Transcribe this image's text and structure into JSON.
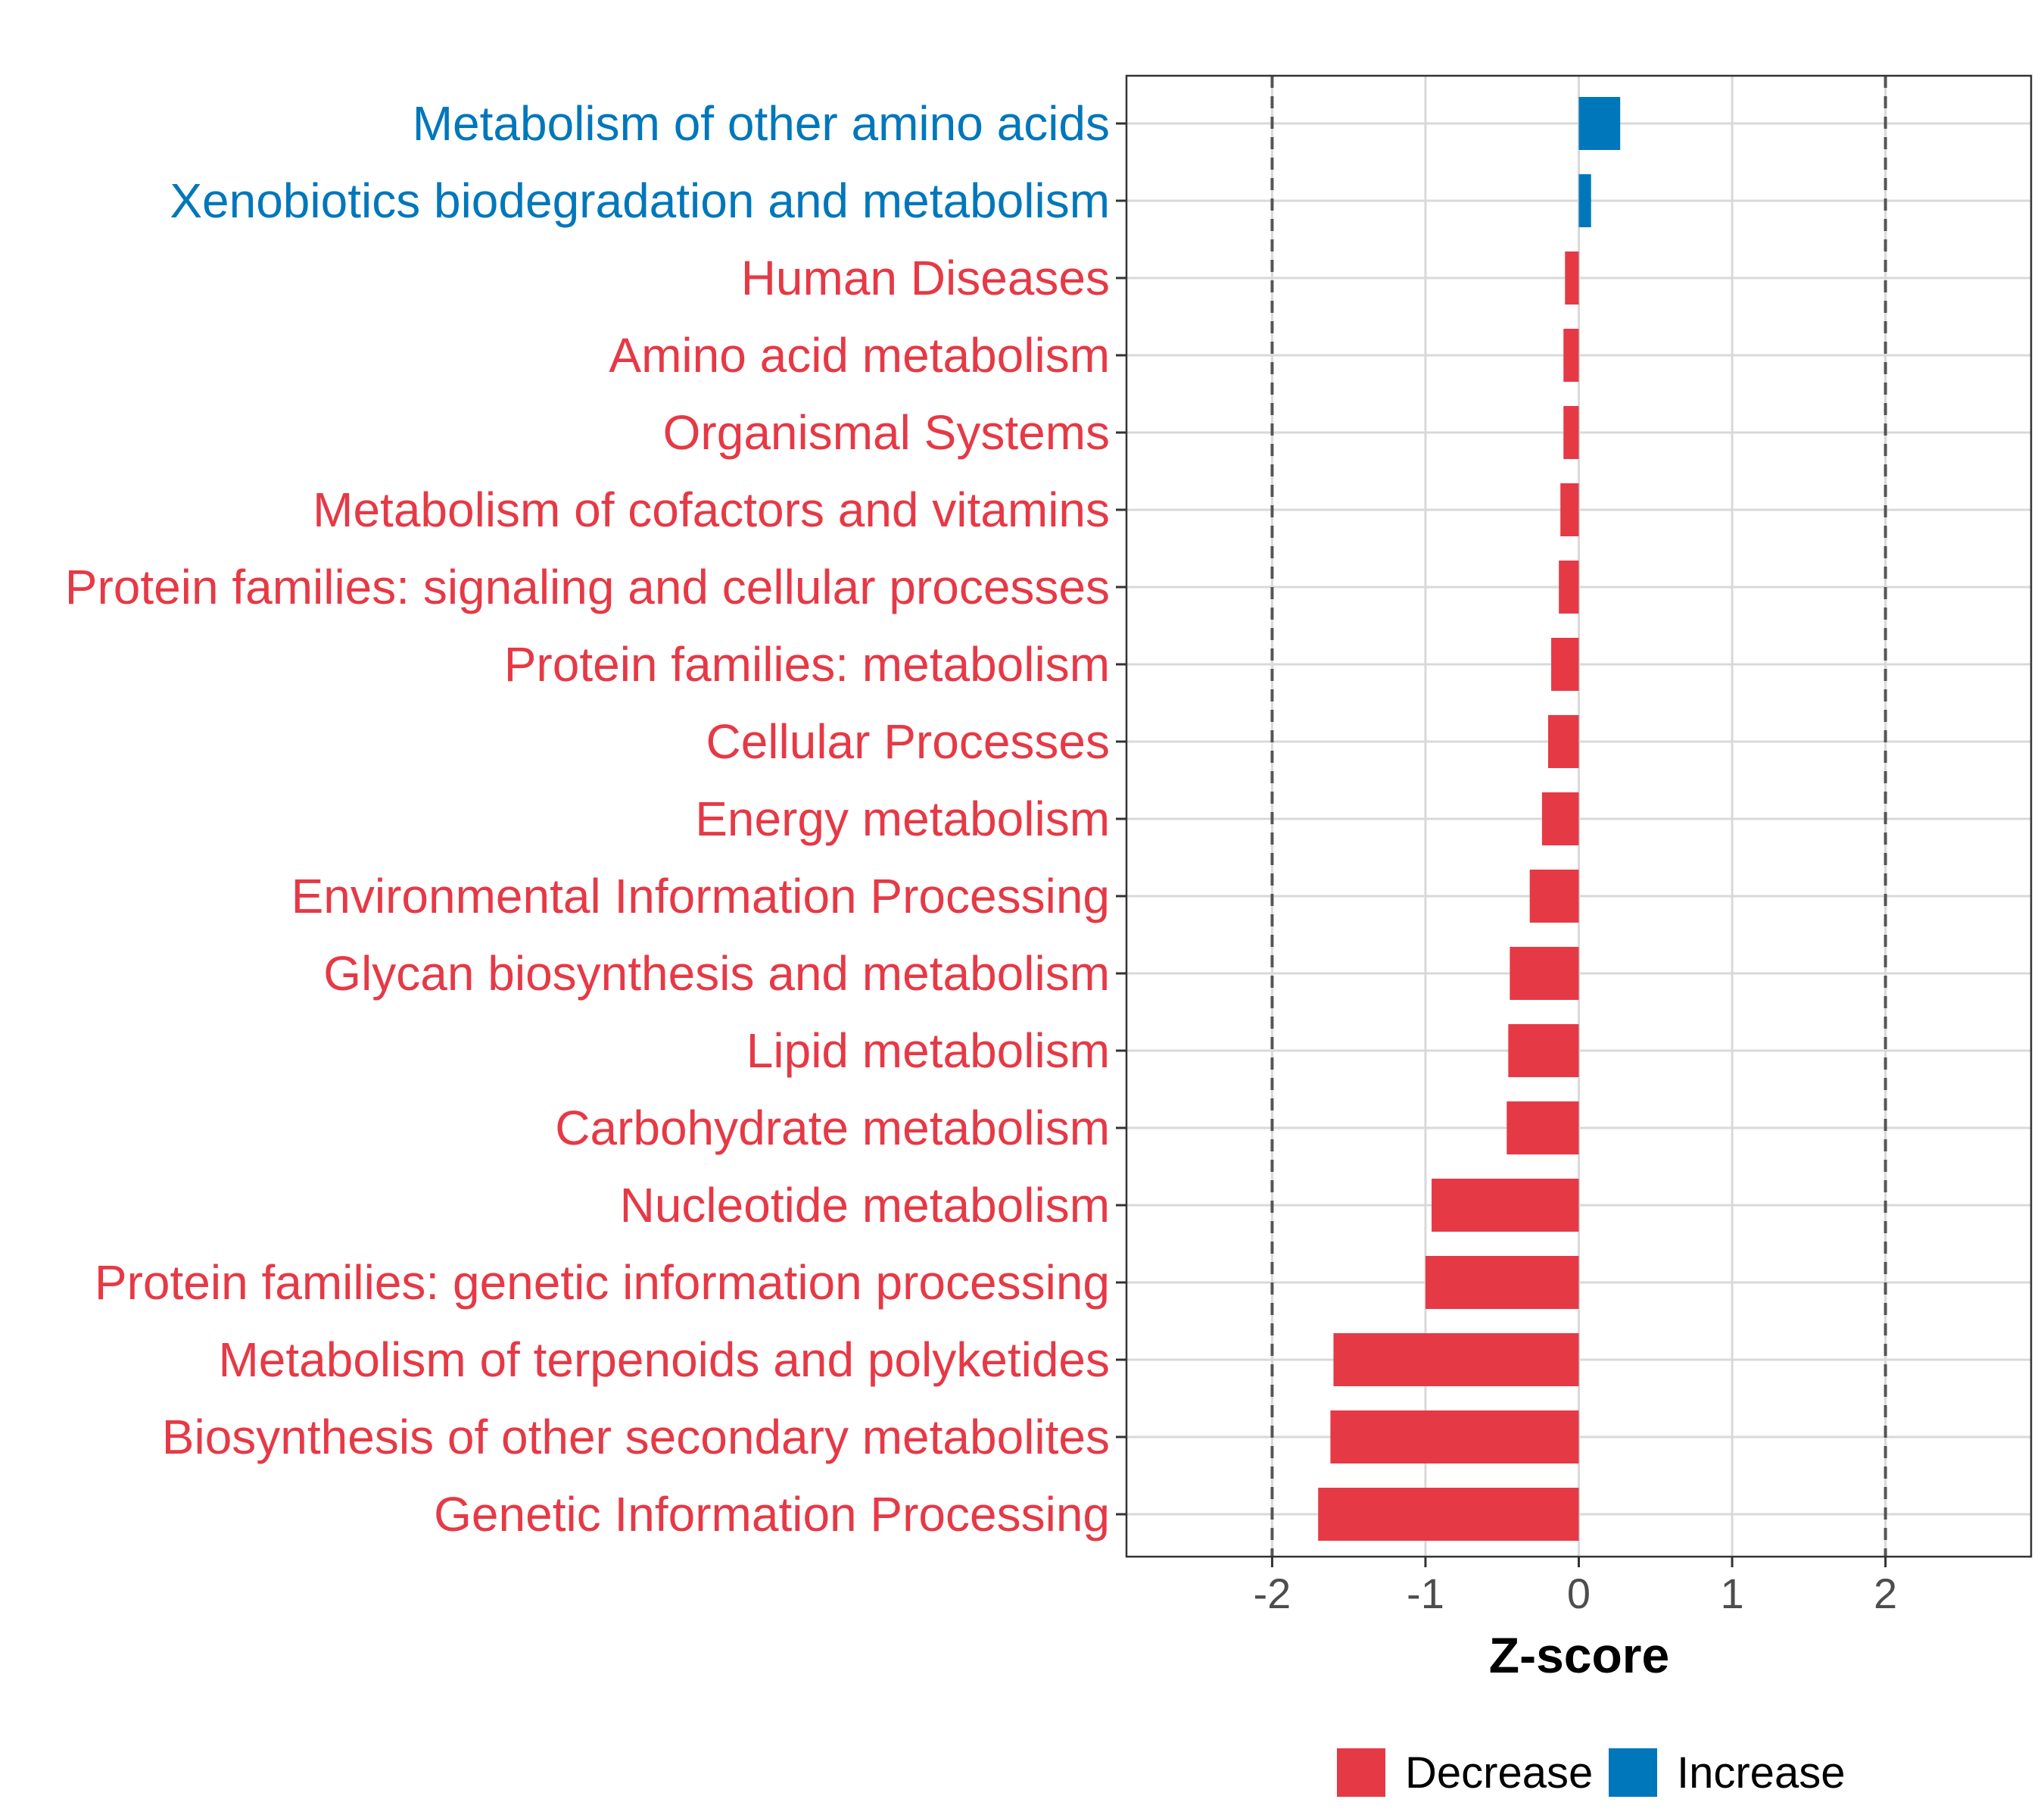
{
  "chart_data": {
    "type": "bar",
    "orientation": "horizontal",
    "categories": [
      "Metabolism of other amino acids",
      "Xenobiotics biodegradation and metabolism",
      "Human Diseases",
      "Amino acid metabolism",
      "Organismal Systems",
      "Metabolism of cofactors and vitamins",
      "Protein families: signaling and cellular processes",
      "Protein families: metabolism",
      "Cellular Processes",
      "Energy metabolism",
      "Environmental Information Processing",
      "Glycan biosynthesis and metabolism",
      "Lipid metabolism",
      "Carbohydrate metabolism",
      "Nucleotide metabolism",
      "Protein families: genetic information processing",
      "Metabolism of terpenoids and polyketides",
      "Biosynthesis of other secondary metabolites",
      "Genetic Information Processing"
    ],
    "values": [
      0.27,
      0.08,
      -0.09,
      -0.1,
      -0.1,
      -0.12,
      -0.13,
      -0.18,
      -0.2,
      -0.24,
      -0.32,
      -0.45,
      -0.46,
      -0.47,
      -0.96,
      -1.0,
      -1.6,
      -1.62,
      -1.7
    ],
    "groups": [
      "Increase",
      "Increase",
      "Decrease",
      "Decrease",
      "Decrease",
      "Decrease",
      "Decrease",
      "Decrease",
      "Decrease",
      "Decrease",
      "Decrease",
      "Decrease",
      "Decrease",
      "Decrease",
      "Decrease",
      "Decrease",
      "Decrease",
      "Decrease",
      "Decrease"
    ],
    "xlabel": "Z-score",
    "xlim": [
      -2.95,
      2.95
    ],
    "xticks": [
      -2,
      -1,
      0,
      1,
      2
    ],
    "xtick_labels": [
      "-2",
      "-1",
      "0",
      "1",
      "2"
    ],
    "reference_lines": [
      -2,
      2
    ],
    "grid": true,
    "legend": {
      "position": "bottom",
      "entries": [
        {
          "label": "Decrease",
          "color": "#E63946"
        },
        {
          "label": "Increase",
          "color": "#0077BB"
        }
      ]
    },
    "colors": {
      "Decrease": "#E63946",
      "Increase": "#0077BB"
    }
  }
}
